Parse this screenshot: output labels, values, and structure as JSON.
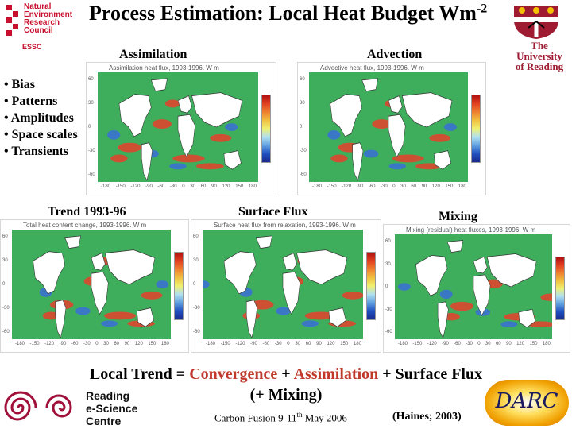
{
  "header": {
    "title": "Process Estimation: Local Heat Budget Wm",
    "title_sup": "-2"
  },
  "logos": {
    "nerc_lines": [
      "Natural",
      "Environment",
      "Research",
      "Council"
    ],
    "essc": "ESSC",
    "reading_lines": [
      "The",
      "University",
      "of Reading"
    ],
    "rec_lines": [
      "Reading",
      "e-Science",
      "Centre"
    ],
    "darc": "DARC"
  },
  "labels": {
    "assimilation": "Assimilation",
    "advection": "Advection",
    "trend": "Trend 1993-96",
    "surface_flux": "Surface Flux",
    "mixing": "Mixing"
  },
  "bullets": [
    "• Bias",
    "• Patterns",
    "• Amplitudes",
    "• Space scales",
    "• Transients"
  ],
  "panels": {
    "assimilation": "Assimilation heat flux, 1993-1996. W m",
    "advection": "Advective heat flux, 1993-1996. W m",
    "trend": "Total heat content change, 1993-1996. W m",
    "surface": "Surface heat flux from relaxation, 1993-1996. W m",
    "mixing": "Mixing (residual) heat fluxes, 1993-1996. W m"
  },
  "axis": {
    "lon_ticks": [
      "-180",
      "-150",
      "-120",
      "-90",
      "-60",
      "-30",
      "0",
      "30",
      "60",
      "90",
      "120",
      "150",
      "180"
    ],
    "lat_ticks": [
      "60",
      "30",
      "0",
      "-30",
      "-60"
    ]
  },
  "equation": {
    "part1": "Local Trend = ",
    "convergence": "Convergence",
    "plus1": " + ",
    "assimilation": "Assimilation",
    "rest": " + Surface Flux",
    "line2": "(+ Mixing)"
  },
  "footer": {
    "event": "Carbon Fusion 9-11",
    "event_sup": "th",
    "event_tail": " May 2006",
    "reference": "(Haines; 2003)"
  },
  "colors": {
    "ocean": "#3fae5c",
    "land": "#ffffff",
    "warm": "#e8402a",
    "cold": "#3a6fd8",
    "accent_red": "#c0392b"
  }
}
